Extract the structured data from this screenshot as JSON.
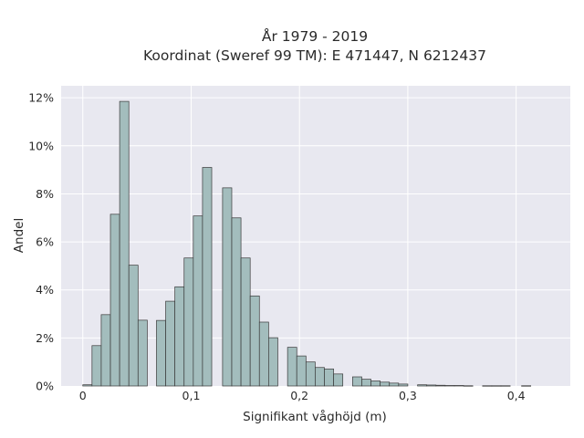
{
  "chart_data": {
    "type": "bar",
    "title_lines": [
      "År 1979 - 2019",
      "Koordinat (Sweref 99 TM): E 471447, N 6212437"
    ],
    "xlabel": "Signifikant våghöjd (m)",
    "ylabel": "Andel",
    "xlim": [
      -0.02,
      0.45
    ],
    "ylim": [
      0,
      12.5
    ],
    "x_ticks": [
      {
        "value": 0,
        "label": "0"
      },
      {
        "value": 0.1,
        "label": "0,1"
      },
      {
        "value": 0.2,
        "label": "0,2"
      },
      {
        "value": 0.3,
        "label": "0,3"
      },
      {
        "value": 0.4,
        "label": "0,4"
      }
    ],
    "y_ticks": [
      {
        "value": 0,
        "label": "0%"
      },
      {
        "value": 2,
        "label": "2%"
      },
      {
        "value": 4,
        "label": "4%"
      },
      {
        "value": 6,
        "label": "6%"
      },
      {
        "value": 8,
        "label": "8%"
      },
      {
        "value": 10,
        "label": "10%"
      },
      {
        "value": 12,
        "label": "12%"
      }
    ],
    "grid": true,
    "bar_color": "#a3bdbd",
    "bar_edge_color": "#3a3a3a",
    "plot_background": "#e8e8f0",
    "bins": [
      {
        "x0": 0.0,
        "x1": 0.0085,
        "y": 0.05
      },
      {
        "x0": 0.0085,
        "x1": 0.017,
        "y": 1.68
      },
      {
        "x0": 0.017,
        "x1": 0.0255,
        "y": 2.97
      },
      {
        "x0": 0.0255,
        "x1": 0.034,
        "y": 7.15
      },
      {
        "x0": 0.034,
        "x1": 0.0425,
        "y": 11.85
      },
      {
        "x0": 0.0425,
        "x1": 0.051,
        "y": 5.03
      },
      {
        "x0": 0.051,
        "x1": 0.0595,
        "y": 2.74
      },
      {
        "x0": 0.068,
        "x1": 0.0765,
        "y": 2.73
      },
      {
        "x0": 0.0765,
        "x1": 0.085,
        "y": 3.53
      },
      {
        "x0": 0.085,
        "x1": 0.0935,
        "y": 4.13
      },
      {
        "x0": 0.0935,
        "x1": 0.102,
        "y": 5.33
      },
      {
        "x0": 0.102,
        "x1": 0.1105,
        "y": 7.08
      },
      {
        "x0": 0.1105,
        "x1": 0.119,
        "y": 9.1
      },
      {
        "x0": 0.129,
        "x1": 0.1375,
        "y": 8.25
      },
      {
        "x0": 0.1375,
        "x1": 0.146,
        "y": 7.0
      },
      {
        "x0": 0.146,
        "x1": 0.1545,
        "y": 5.33
      },
      {
        "x0": 0.1545,
        "x1": 0.163,
        "y": 3.75
      },
      {
        "x0": 0.163,
        "x1": 0.1715,
        "y": 2.66
      },
      {
        "x0": 0.1715,
        "x1": 0.18,
        "y": 2.01
      },
      {
        "x0": 0.189,
        "x1": 0.1975,
        "y": 1.61
      },
      {
        "x0": 0.1975,
        "x1": 0.206,
        "y": 1.25
      },
      {
        "x0": 0.206,
        "x1": 0.2145,
        "y": 1.0
      },
      {
        "x0": 0.2145,
        "x1": 0.223,
        "y": 0.77
      },
      {
        "x0": 0.223,
        "x1": 0.2315,
        "y": 0.71
      },
      {
        "x0": 0.2315,
        "x1": 0.24,
        "y": 0.5
      },
      {
        "x0": 0.249,
        "x1": 0.2575,
        "y": 0.38
      },
      {
        "x0": 0.2575,
        "x1": 0.266,
        "y": 0.28
      },
      {
        "x0": 0.266,
        "x1": 0.2745,
        "y": 0.21
      },
      {
        "x0": 0.2745,
        "x1": 0.283,
        "y": 0.16
      },
      {
        "x0": 0.283,
        "x1": 0.2915,
        "y": 0.12
      },
      {
        "x0": 0.2915,
        "x1": 0.3,
        "y": 0.08
      },
      {
        "x0": 0.309,
        "x1": 0.3175,
        "y": 0.05
      },
      {
        "x0": 0.3175,
        "x1": 0.326,
        "y": 0.04
      },
      {
        "x0": 0.326,
        "x1": 0.3345,
        "y": 0.03
      },
      {
        "x0": 0.3345,
        "x1": 0.343,
        "y": 0.02
      },
      {
        "x0": 0.343,
        "x1": 0.3515,
        "y": 0.02
      },
      {
        "x0": 0.3515,
        "x1": 0.36,
        "y": 0.01
      },
      {
        "x0": 0.369,
        "x1": 0.3775,
        "y": 0.01
      },
      {
        "x0": 0.3775,
        "x1": 0.386,
        "y": 0.01
      },
      {
        "x0": 0.386,
        "x1": 0.3945,
        "y": 0.01
      },
      {
        "x0": 0.405,
        "x1": 0.4135,
        "y": 0.01
      }
    ]
  }
}
